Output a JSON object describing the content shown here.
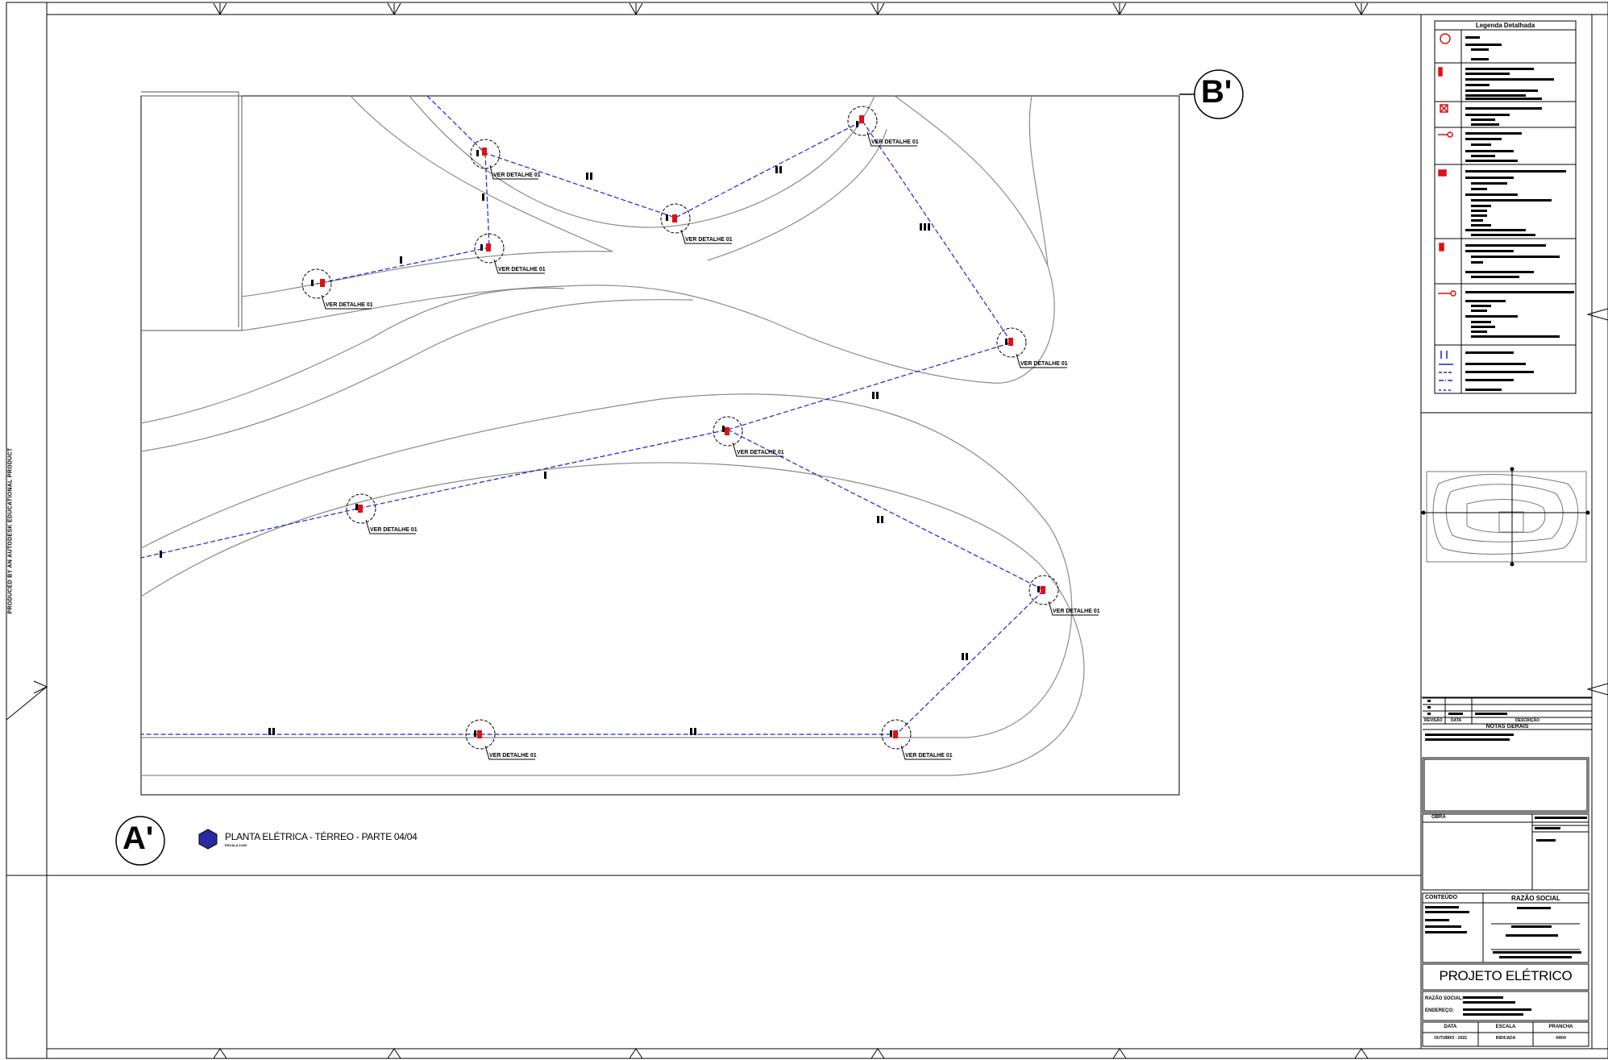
{
  "sheet": {
    "watermark": "PRODUCED BY AN AUTODESK EDUCATIONAL PRODUCT",
    "section_left": "A'",
    "section_right": "B'"
  },
  "plan": {
    "title": "PLANTA ELÉTRICA - TÉRREO - PARTE 04/04",
    "scale": "ESCALA 1/100",
    "callout_text": "VER DETALHE 01",
    "detail_callouts": [
      {
        "text": "VER DETALHE 01"
      },
      {
        "text": "VER DETALHE 01"
      },
      {
        "text": "VER DETALHE 01"
      },
      {
        "text": "VER DETALHE 01"
      },
      {
        "text": "VER DETALHE 01"
      },
      {
        "text": "VER DETALHE 01"
      },
      {
        "text": "VER DETALHE 01"
      },
      {
        "text": "VER DETALHE 01"
      },
      {
        "text": "VER DETALHE 01"
      },
      {
        "text": "VER DETALHE 01"
      },
      {
        "text": "VER DETALHE 01"
      },
      {
        "text": "VER DETALHE 01"
      }
    ]
  },
  "legend": {
    "title": "Legenda Detalhada",
    "items": [
      {
        "icon": "pole-light-icon",
        "text": "LED"
      },
      {
        "icon": "panel-icon",
        "text": "Quadro de distribuição"
      },
      {
        "icon": "box-icon",
        "text": "Caixa de passagem"
      },
      {
        "icon": "switch-icon",
        "text": "Interruptor"
      },
      {
        "icon": "luminaire-icon",
        "text": "Luminária"
      },
      {
        "icon": "meter-icon",
        "text": "Quadro de medição"
      },
      {
        "icon": "outlet-icon",
        "text": "Tomada"
      },
      {
        "icon": "conduit-icon",
        "text": "Eletroduto"
      }
    ]
  },
  "title_block": {
    "notes_title": "NOTAS GERAIS",
    "revision_cols": [
      "REVISÃO",
      "DATA",
      "DESCRIÇÃO"
    ],
    "obra_label": "OBRA",
    "conteudo_label": "CONTEÚDO",
    "razao_label": "RAZÃO SOCIAL",
    "project_title": "PROJETO ELÉTRICO",
    "razao_social_label": "RAZÃO SOCIAL:",
    "endereco_label": "ENDEREÇO:",
    "footer_headers": [
      "DATA",
      "ESCALA",
      "PRANCHA"
    ],
    "footer_values": [
      "OUTUBRO - 2022",
      "INDICADA",
      "04/04"
    ]
  },
  "colors": {
    "conduit": "#1f1fe0",
    "equipment": "#e01010",
    "line": "#000000",
    "path": "#888888"
  }
}
